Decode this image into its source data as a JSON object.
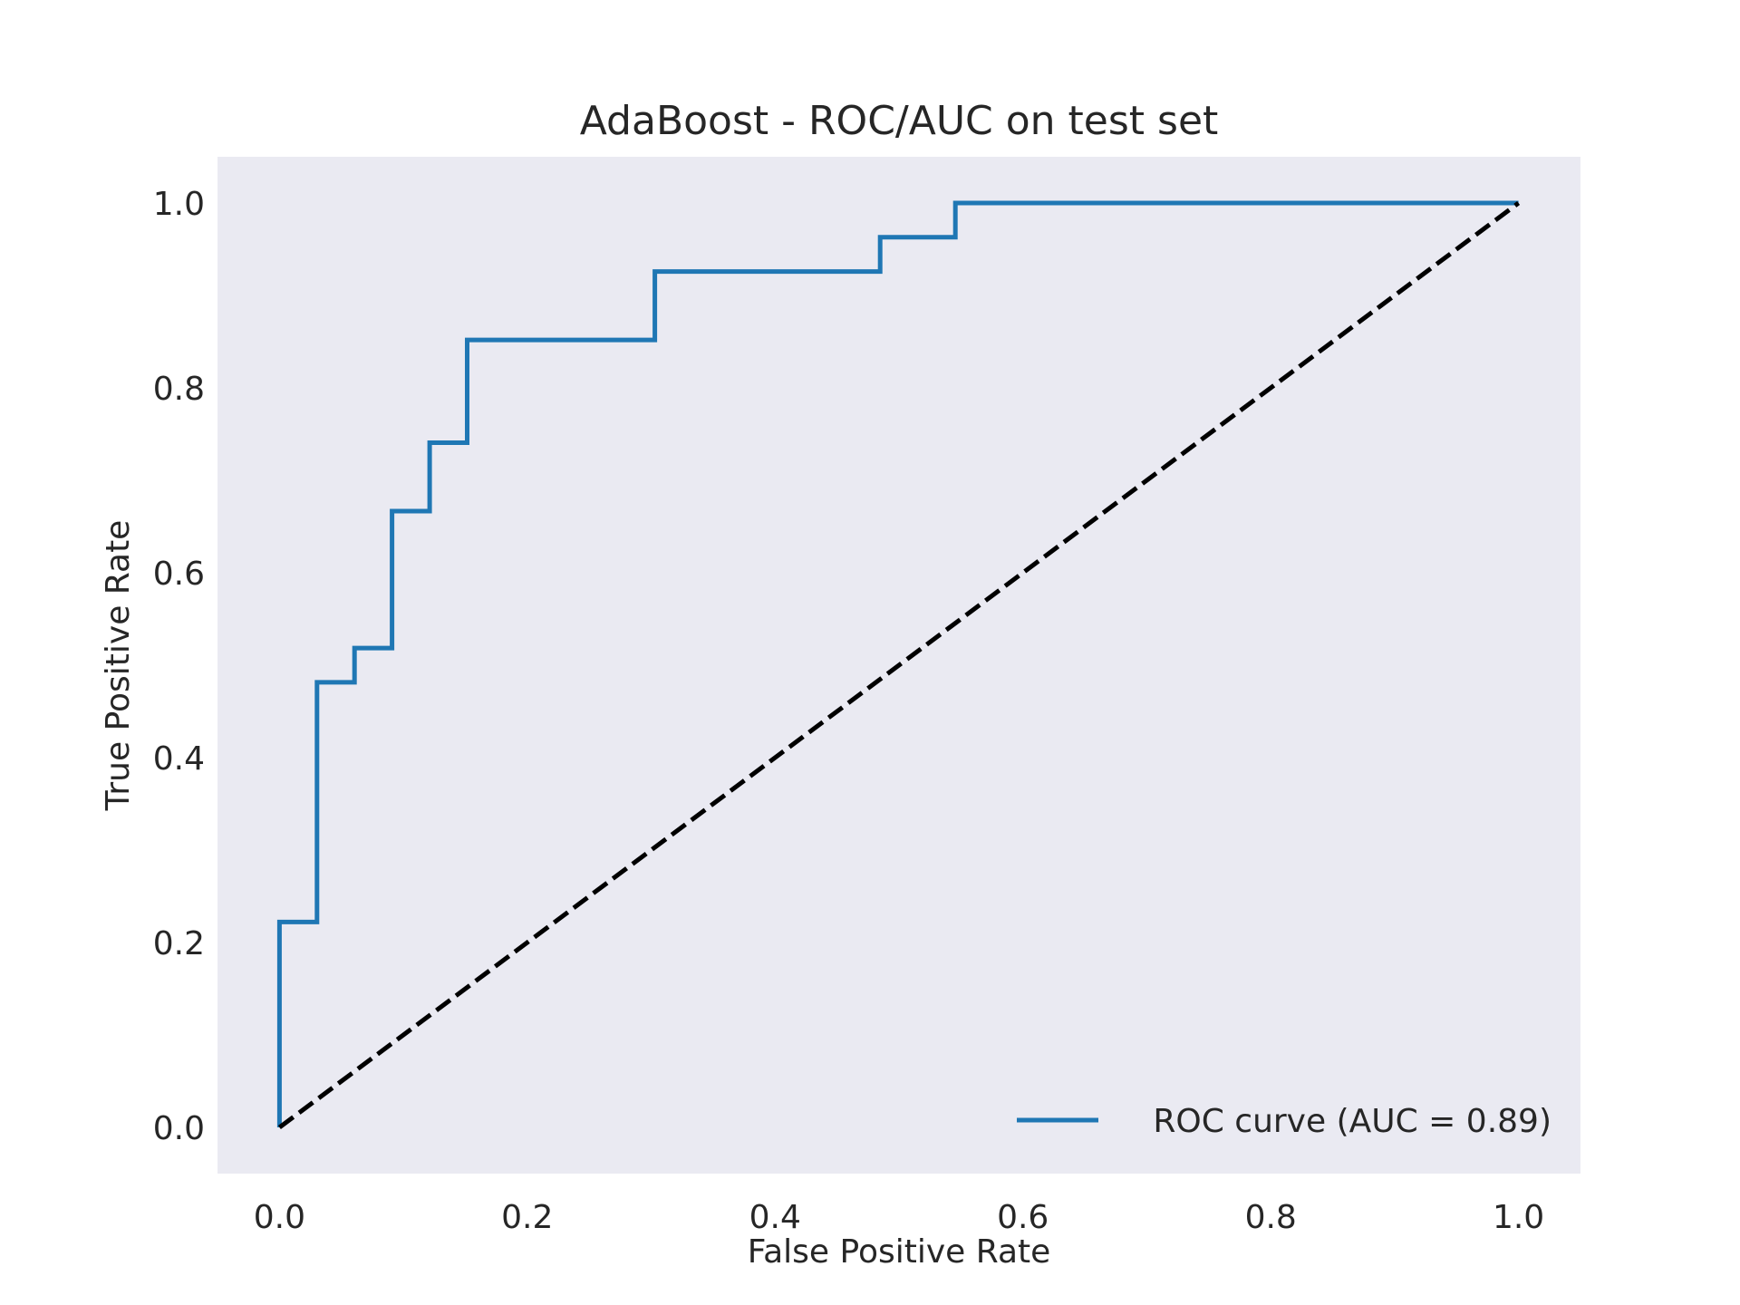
{
  "chart_data": {
    "type": "line",
    "title": "AdaBoost - ROC/AUC on test set",
    "xlabel": "False Positive Rate",
    "ylabel": "True Positive Rate",
    "xlim": [
      -0.05,
      1.05
    ],
    "ylim": [
      -0.05,
      1.05
    ],
    "xticks": [
      "0.0",
      "0.2",
      "0.4",
      "0.6",
      "0.8",
      "1.0"
    ],
    "yticks": [
      "0.0",
      "0.2",
      "0.4",
      "0.6",
      "0.8",
      "1.0"
    ],
    "grid": false,
    "background_color": "#eaeaf2",
    "legend_position": "lower right",
    "series": [
      {
        "name": "ROC curve (AUC = 0.89)",
        "color": "#1f77b4",
        "style": "solid",
        "x": [
          0.0,
          0.0,
          0.0303,
          0.0303,
          0.0606,
          0.0606,
          0.0909,
          0.0909,
          0.1212,
          0.1212,
          0.1515,
          0.1515,
          0.303,
          0.303,
          0.4848,
          0.4848,
          0.5455,
          0.5455,
          1.0
        ],
        "y": [
          0.0,
          0.2222,
          0.2222,
          0.4815,
          0.4815,
          0.5185,
          0.5185,
          0.6667,
          0.6667,
          0.7407,
          0.7407,
          0.8519,
          0.8519,
          0.9259,
          0.9259,
          0.963,
          0.963,
          1.0,
          1.0
        ]
      },
      {
        "color": "#000000",
        "style": "dashed",
        "x": [
          0.0,
          1.0
        ],
        "y": [
          0.0,
          1.0
        ]
      }
    ]
  }
}
